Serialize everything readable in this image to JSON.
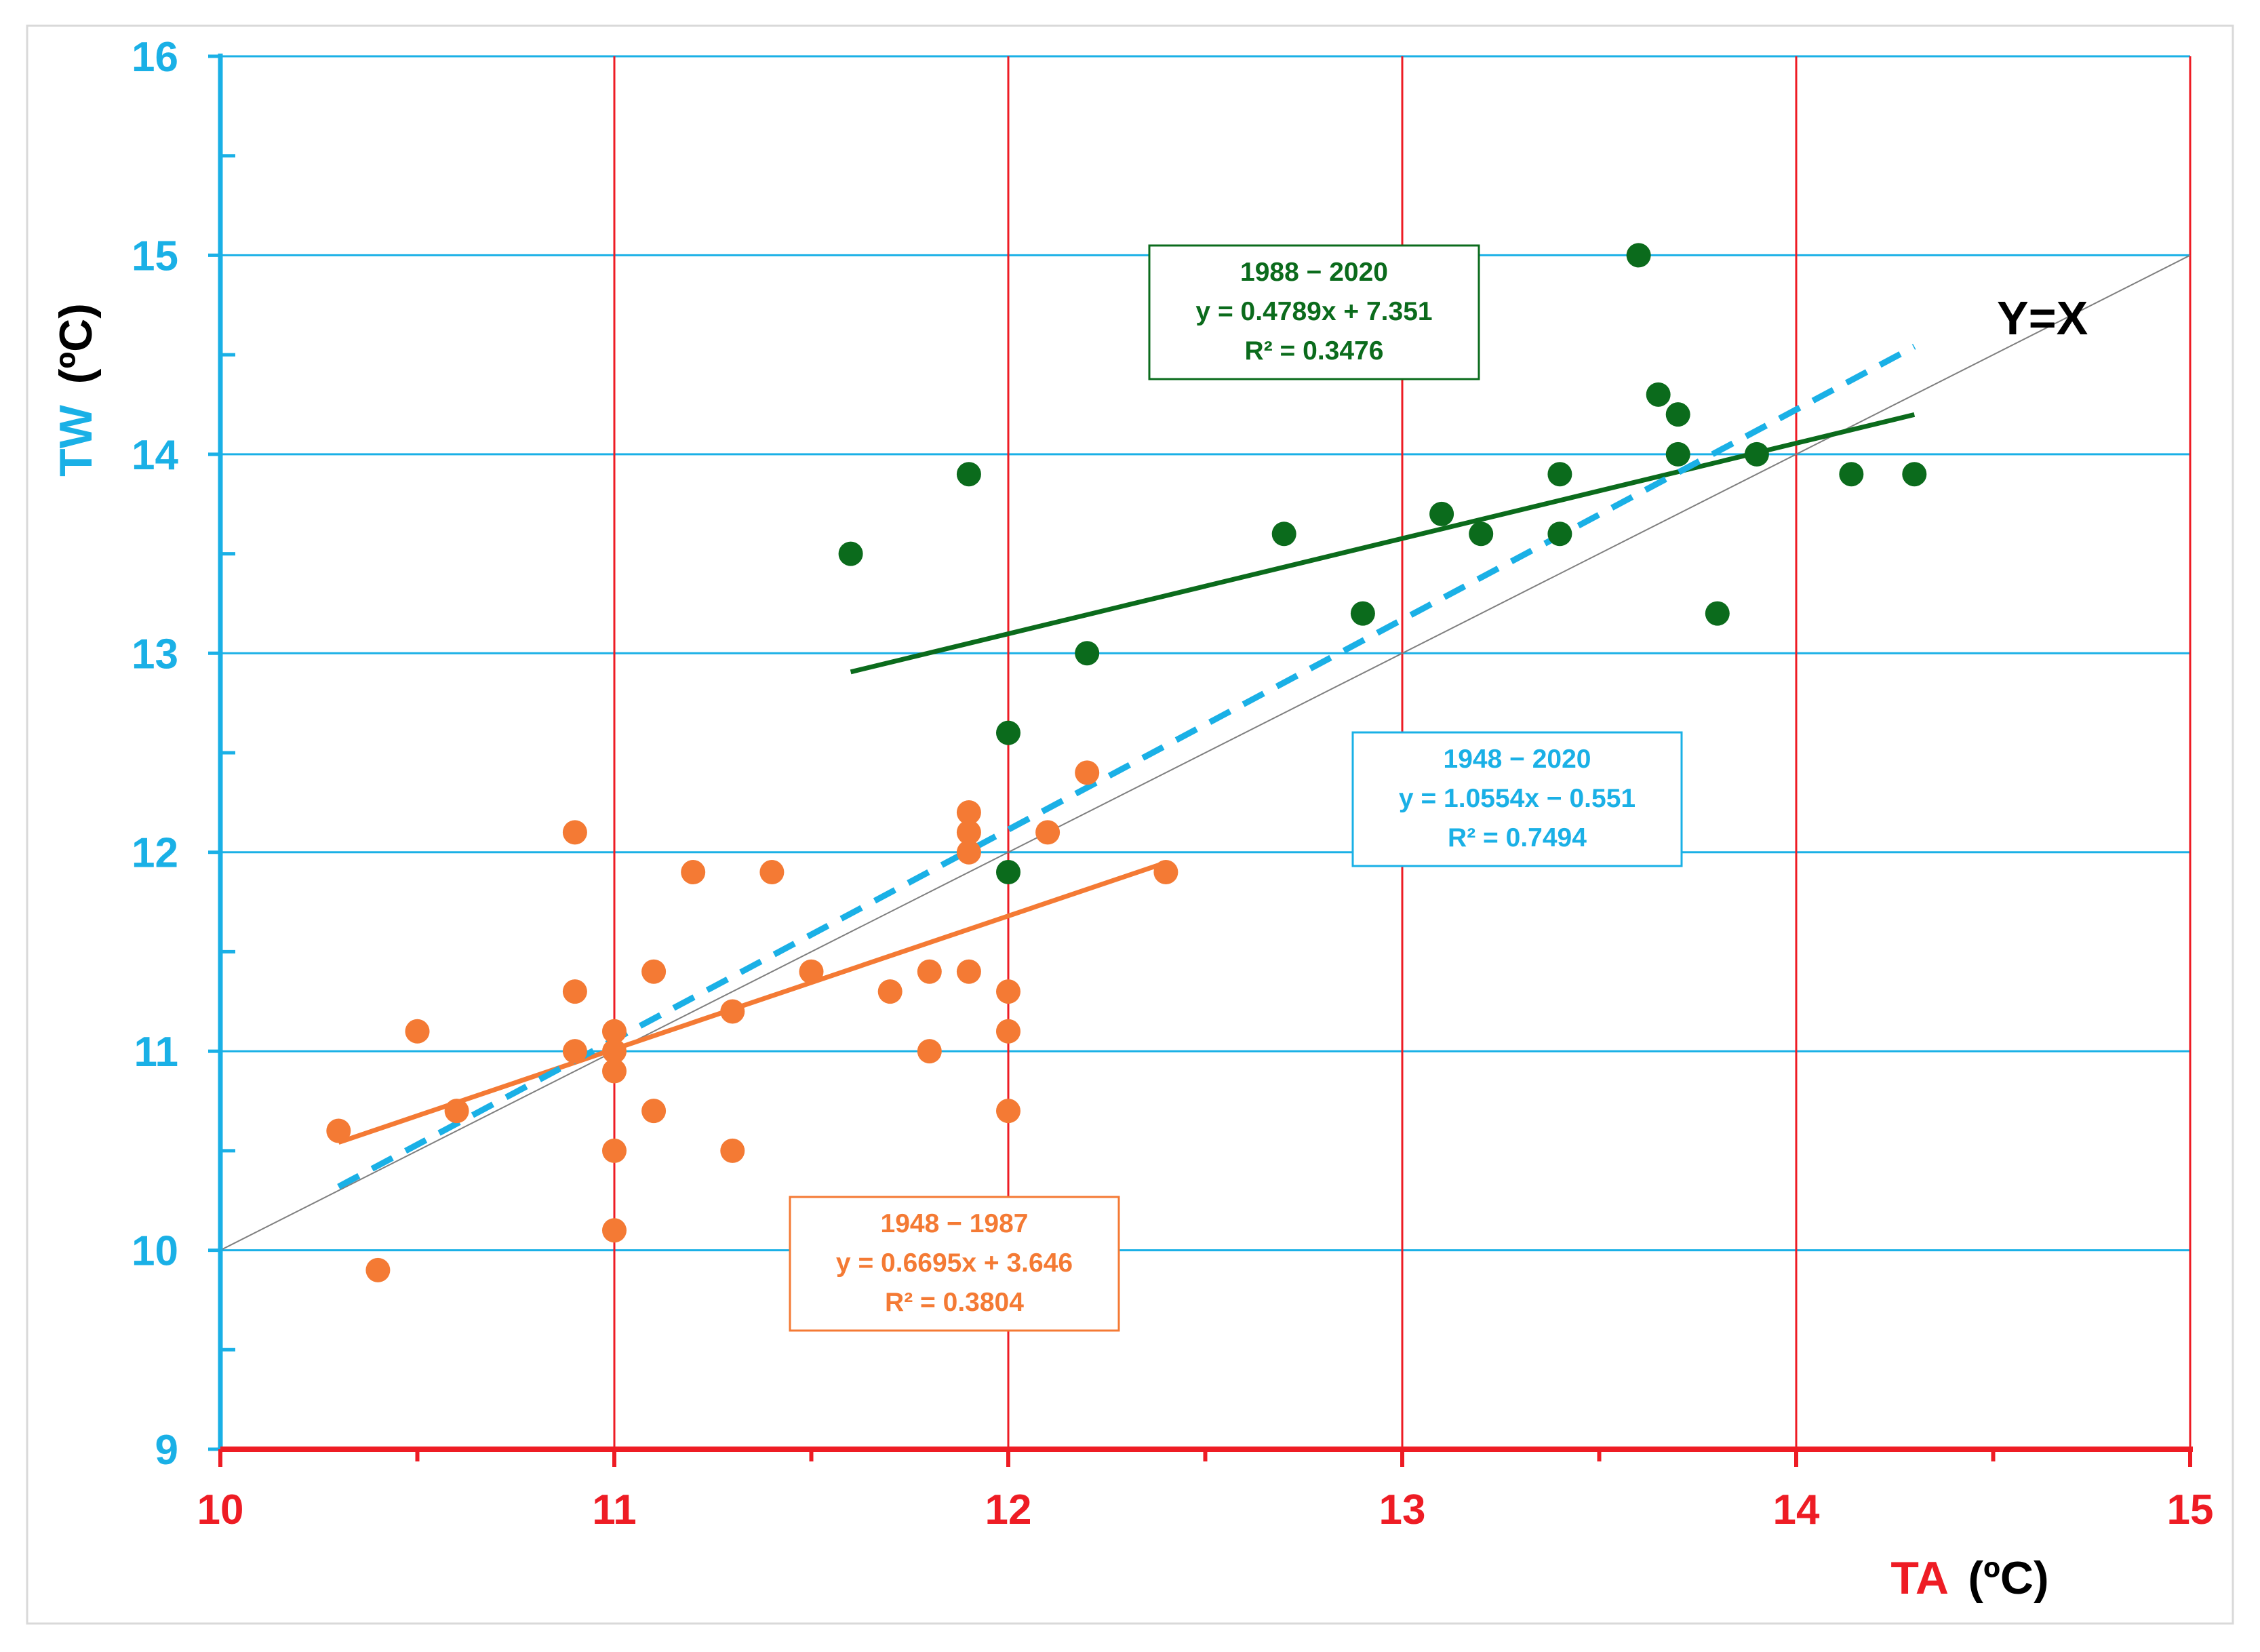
{
  "chart_data": {
    "type": "scatter",
    "xlabel_prefix": "TA",
    "xlabel_unit": "(ºC)",
    "ylabel_prefix": "TW",
    "ylabel_unit": "(ºC)",
    "xlim": [
      10,
      15
    ],
    "ylim": [
      9,
      16
    ],
    "x_ticks": [
      "10",
      "11",
      "12",
      "13",
      "14",
      "15"
    ],
    "y_ticks": [
      "9",
      "10",
      "11",
      "12",
      "13",
      "14",
      "15",
      "16"
    ],
    "grid": true,
    "identity_label": "Y=X",
    "series": [
      {
        "name": "1948 − 1987",
        "color": "#f47a34",
        "points": [
          [
            10.3,
            10.6
          ],
          [
            10.4,
            9.9
          ],
          [
            10.5,
            11.1
          ],
          [
            10.6,
            10.7
          ],
          [
            10.9,
            12.1
          ],
          [
            10.9,
            11.3
          ],
          [
            10.9,
            11.0
          ],
          [
            11.0,
            11.1
          ],
          [
            11.0,
            11.0
          ],
          [
            11.0,
            10.9
          ],
          [
            11.0,
            10.5
          ],
          [
            11.0,
            10.1
          ],
          [
            11.1,
            11.4
          ],
          [
            11.1,
            10.7
          ],
          [
            11.2,
            11.9
          ],
          [
            11.3,
            11.2
          ],
          [
            11.3,
            10.5
          ],
          [
            11.4,
            11.9
          ],
          [
            11.5,
            11.4
          ],
          [
            11.7,
            11.3
          ],
          [
            11.8,
            11.4
          ],
          [
            11.8,
            11.0
          ],
          [
            11.9,
            12.2
          ],
          [
            11.9,
            12.1
          ],
          [
            11.9,
            12.0
          ],
          [
            11.9,
            11.4
          ],
          [
            12.0,
            11.3
          ],
          [
            12.0,
            11.1
          ],
          [
            12.0,
            10.7
          ],
          [
            12.1,
            12.1
          ],
          [
            12.2,
            12.4
          ],
          [
            12.4,
            11.9
          ]
        ],
        "fit": {
          "slope": 0.6695,
          "intercept": 3.646,
          "x_range": [
            10.3,
            12.4
          ]
        },
        "box": {
          "title": "1948 − 1987",
          "equation": "y = 0.6695x + 3.646",
          "r2": "R² = 0.3804"
        }
      },
      {
        "name": "1988 − 2020",
        "color": "#0b6b1c",
        "points": [
          [
            11.6,
            13.5
          ],
          [
            11.9,
            13.9
          ],
          [
            12.0,
            12.6
          ],
          [
            12.0,
            11.9
          ],
          [
            12.2,
            13.0
          ],
          [
            12.7,
            13.6
          ],
          [
            12.9,
            13.2
          ],
          [
            13.1,
            13.7
          ],
          [
            13.2,
            13.6
          ],
          [
            13.4,
            13.9
          ],
          [
            13.4,
            13.6
          ],
          [
            13.6,
            15.0
          ],
          [
            13.65,
            14.3
          ],
          [
            13.7,
            14.2
          ],
          [
            13.7,
            14.0
          ],
          [
            13.8,
            13.2
          ],
          [
            13.9,
            14.0
          ],
          [
            14.14,
            13.9
          ],
          [
            14.3,
            13.9
          ]
        ],
        "fit": {
          "slope": 0.4789,
          "intercept": 7.351,
          "x_range": [
            11.6,
            14.3
          ]
        },
        "box": {
          "title": "1988 − 2020",
          "equation": "y = 0.4789x + 7.351",
          "r2": "R² = 0.3476"
        }
      },
      {
        "name": "1948 − 2020",
        "color": "#1ab0e6",
        "points": [],
        "fit": {
          "slope": 1.0554,
          "intercept": -0.551,
          "x_range": [
            10.3,
            14.3
          ],
          "dashed": true
        },
        "box": {
          "title": "1948 − 2020",
          "equation": "y = 1.0554x − 0.551",
          "r2": "R² = 0.7494"
        }
      }
    ]
  },
  "colors": {
    "x_axis": "#ee1c24",
    "y_axis": "#1ab0e6",
    "grid_vertical": "#ee1c24",
    "grid_horizontal": "#1ab0e6",
    "identity_line": "#7f7f7f",
    "text_dark": "#000000"
  }
}
